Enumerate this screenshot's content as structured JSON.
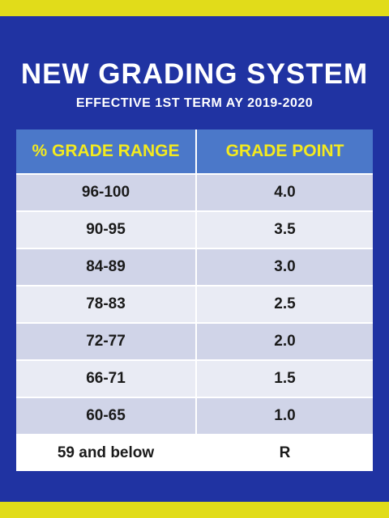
{
  "title": "NEW GRADING SYSTEM",
  "subtitle": "EFFECTIVE 1ST TERM AY 2019-2020",
  "table": {
    "headers": [
      "% GRADE  RANGE",
      "GRADE  POINT"
    ],
    "rows": [
      {
        "range": "96-100",
        "point": "4.0"
      },
      {
        "range": "90-95",
        "point": "3.5"
      },
      {
        "range": "84-89",
        "point": "3.0"
      },
      {
        "range": "78-83",
        "point": "2.5"
      },
      {
        "range": "72-77",
        "point": "2.0"
      },
      {
        "range": "66-71",
        "point": "1.5"
      },
      {
        "range": "60-65",
        "point": "1.0"
      },
      {
        "range": "59 and below",
        "point": "R"
      }
    ]
  },
  "colors": {
    "border_yellow": "#e1dc1a",
    "background_blue": "#2033a2",
    "header_blue": "#4b78c9",
    "header_text": "#f3ea1f"
  }
}
